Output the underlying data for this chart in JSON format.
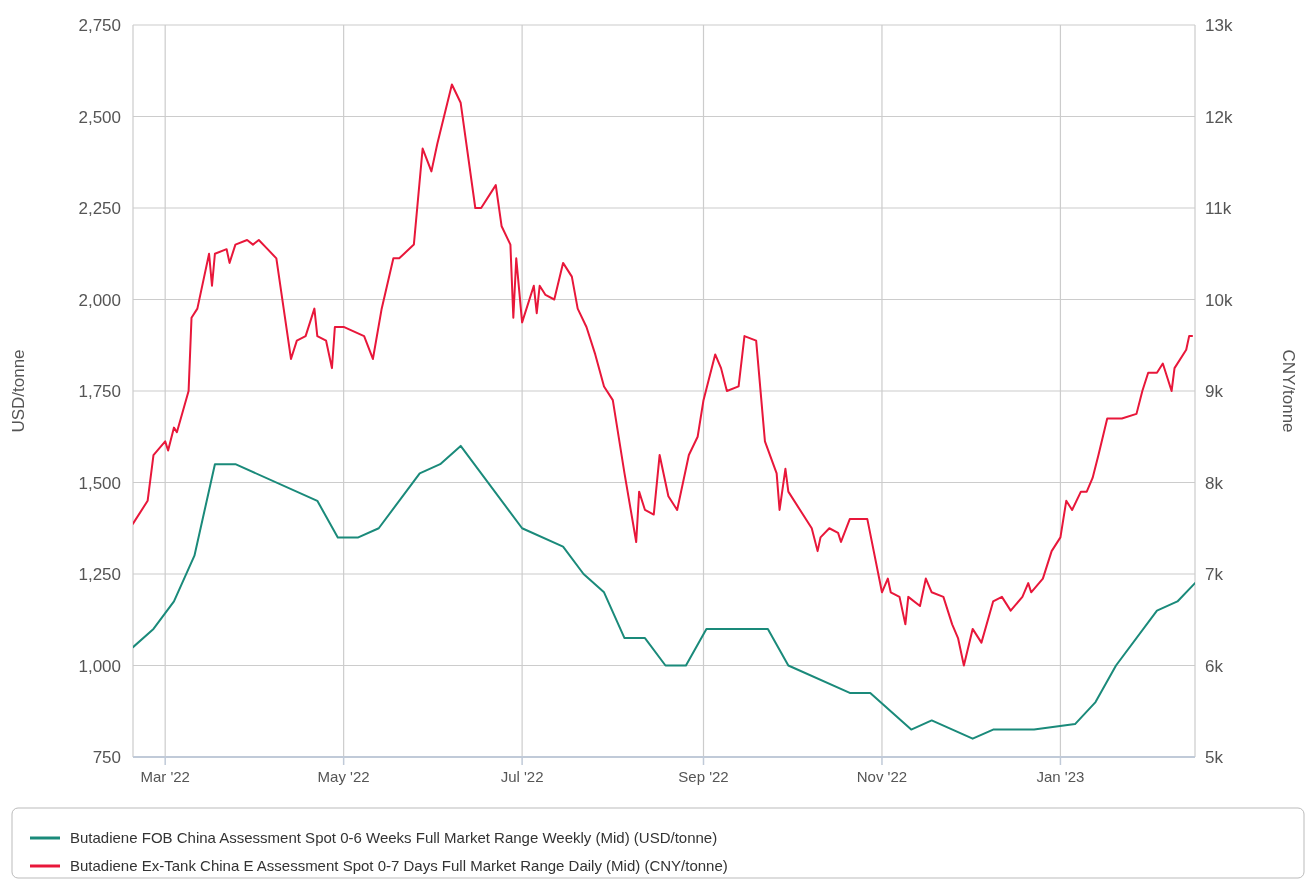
{
  "chart_data": {
    "type": "line",
    "ylabel": "USD/tonne",
    "y2label": "CNY/tonne",
    "xlim": [
      "2022-02-18",
      "2023-02-16"
    ],
    "xticks": [
      {
        "value": "2022-03-01",
        "label": "Mar '22"
      },
      {
        "value": "2022-05-01",
        "label": "May '22"
      },
      {
        "value": "2022-07-01",
        "label": "Jul '22"
      },
      {
        "value": "2022-09-01",
        "label": "Sep '22"
      },
      {
        "value": "2022-11-01",
        "label": "Nov '22"
      },
      {
        "value": "2023-01-01",
        "label": "Jan '23"
      }
    ],
    "ylim": [
      750,
      2750
    ],
    "yticks": [
      {
        "value": 750,
        "label": "750"
      },
      {
        "value": 1000,
        "label": "1,000"
      },
      {
        "value": 1250,
        "label": "1,250"
      },
      {
        "value": 1500,
        "label": "1,500"
      },
      {
        "value": 1750,
        "label": "1,750"
      },
      {
        "value": 2000,
        "label": "2,000"
      },
      {
        "value": 2250,
        "label": "2,250"
      },
      {
        "value": 2500,
        "label": "2,500"
      },
      {
        "value": 2750,
        "label": "2,750"
      }
    ],
    "y2lim": [
      5000,
      13000
    ],
    "y2ticks": [
      {
        "value": 5000,
        "label": "5k"
      },
      {
        "value": 6000,
        "label": "6k"
      },
      {
        "value": 7000,
        "label": "7k"
      },
      {
        "value": 8000,
        "label": "8k"
      },
      {
        "value": 9000,
        "label": "9k"
      },
      {
        "value": 10000,
        "label": "10k"
      },
      {
        "value": 11000,
        "label": "11k"
      },
      {
        "value": 12000,
        "label": "12k"
      },
      {
        "value": 13000,
        "label": "13k"
      }
    ],
    "grid": true,
    "legend": "bottom",
    "marker": "none",
    "line_style": "solid",
    "series": [
      {
        "name": "Butadiene FOB China Assessment Spot 0-6 Weeks Full Market Range Weekly (Mid) (USD/tonne)",
        "color": "#1a8a7a",
        "x": [
          "2022-02-18",
          "2022-02-25",
          "2022-03-04",
          "2022-03-11",
          "2022-03-18",
          "2022-03-25",
          "2022-04-22",
          "2022-04-29",
          "2022-05-06",
          "2022-05-13",
          "2022-05-27",
          "2022-06-03",
          "2022-06-10",
          "2022-07-01",
          "2022-07-15",
          "2022-07-22",
          "2022-07-29",
          "2022-08-05",
          "2022-08-12",
          "2022-08-19",
          "2022-08-26",
          "2022-09-02",
          "2022-09-23",
          "2022-09-30",
          "2022-10-21",
          "2022-10-28",
          "2022-11-11",
          "2022-11-18",
          "2022-12-02",
          "2022-12-09",
          "2022-12-23",
          "2023-01-06",
          "2023-01-13",
          "2023-01-20",
          "2023-02-03",
          "2023-02-10",
          "2023-02-16"
        ],
        "values": [
          1050,
          1100,
          1175,
          1300,
          1550,
          1550,
          1450,
          1350,
          1350,
          1375,
          1525,
          1550,
          1600,
          1375,
          1325,
          1250,
          1200,
          1075,
          1075,
          1000,
          1000,
          1100,
          1100,
          1000,
          925,
          925,
          825,
          850,
          800,
          825,
          825,
          840,
          900,
          1000,
          1150,
          1175,
          1225
        ]
      },
      {
        "name": "Butadiene Ex-Tank China E Assessment Spot 0-7 Days Full Market Range Daily (Mid) (CNY/tonne)",
        "color": "#e8173a",
        "axis": "y2",
        "x": [
          "2022-02-18",
          "2022-02-23",
          "2022-02-25",
          "2022-03-01",
          "2022-03-02",
          "2022-03-04",
          "2022-03-05",
          "2022-03-09",
          "2022-03-10",
          "2022-03-12",
          "2022-03-16",
          "2022-03-17",
          "2022-03-18",
          "2022-03-22",
          "2022-03-23",
          "2022-03-25",
          "2022-03-29",
          "2022-03-31",
          "2022-04-02",
          "2022-04-05",
          "2022-04-08",
          "2022-04-13",
          "2022-04-15",
          "2022-04-18",
          "2022-04-21",
          "2022-04-22",
          "2022-04-25",
          "2022-04-27",
          "2022-04-28",
          "2022-05-01",
          "2022-05-08",
          "2022-05-11",
          "2022-05-14",
          "2022-05-18",
          "2022-05-20",
          "2022-05-25",
          "2022-05-28",
          "2022-05-31",
          "2022-06-02",
          "2022-06-07",
          "2022-06-10",
          "2022-06-15",
          "2022-06-17",
          "2022-06-22",
          "2022-06-24",
          "2022-06-27",
          "2022-06-28",
          "2022-06-29",
          "2022-07-01",
          "2022-07-05",
          "2022-07-06",
          "2022-07-07",
          "2022-07-09",
          "2022-07-12",
          "2022-07-15",
          "2022-07-18",
          "2022-07-20",
          "2022-07-23",
          "2022-07-26",
          "2022-07-29",
          "2022-08-01",
          "2022-08-05",
          "2022-08-09",
          "2022-08-10",
          "2022-08-12",
          "2022-08-15",
          "2022-08-17",
          "2022-08-20",
          "2022-08-23",
          "2022-08-27",
          "2022-08-30",
          "2022-09-01",
          "2022-09-05",
          "2022-09-07",
          "2022-09-09",
          "2022-09-13",
          "2022-09-15",
          "2022-09-19",
          "2022-09-22",
          "2022-09-26",
          "2022-09-27",
          "2022-09-29",
          "2022-09-30",
          "2022-10-08",
          "2022-10-10",
          "2022-10-11",
          "2022-10-14",
          "2022-10-17",
          "2022-10-18",
          "2022-10-21",
          "2022-10-27",
          "2022-11-01",
          "2022-11-03",
          "2022-11-04",
          "2022-11-07",
          "2022-11-09",
          "2022-11-10",
          "2022-11-14",
          "2022-11-16",
          "2022-11-18",
          "2022-11-22",
          "2022-11-25",
          "2022-11-27",
          "2022-11-29",
          "2022-12-02",
          "2022-12-05",
          "2022-12-09",
          "2022-12-12",
          "2022-12-15",
          "2022-12-19",
          "2022-12-21",
          "2022-12-22",
          "2022-12-26",
          "2022-12-29",
          "2023-01-01",
          "2023-01-03",
          "2023-01-05",
          "2023-01-08",
          "2023-01-10",
          "2023-01-12",
          "2023-01-14",
          "2023-01-17",
          "2023-01-22",
          "2023-01-27",
          "2023-01-29",
          "2023-01-31",
          "2023-02-03",
          "2023-02-05",
          "2023-02-08",
          "2023-02-09",
          "2023-02-13",
          "2023-02-14",
          "2023-02-15"
        ],
        "values": [
          7550,
          7800,
          8300,
          8450,
          8350,
          8600,
          8550,
          9000,
          9800,
          9900,
          10500,
          10150,
          10500,
          10550,
          10400,
          10600,
          10650,
          10600,
          10650,
          10550,
          10450,
          9350,
          9550,
          9600,
          9900,
          9600,
          9550,
          9250,
          9700,
          9700,
          9600,
          9350,
          9900,
          10450,
          10450,
          10600,
          11650,
          11400,
          11700,
          12350,
          12150,
          11000,
          11000,
          11250,
          10800,
          10600,
          9800,
          10450,
          9750,
          10150,
          9850,
          10150,
          10050,
          10000,
          10400,
          10250,
          9900,
          9700,
          9400,
          9050,
          8900,
          8100,
          7350,
          7900,
          7700,
          7650,
          8300,
          7850,
          7700,
          8300,
          8500,
          8900,
          9400,
          9250,
          9000,
          9050,
          9600,
          9550,
          8450,
          8100,
          7700,
          8150,
          7900,
          7500,
          7250,
          7400,
          7500,
          7450,
          7350,
          7600,
          7600,
          6800,
          6950,
          6800,
          6750,
          6450,
          6750,
          6650,
          6950,
          6800,
          6750,
          6450,
          6300,
          6000,
          6400,
          6250,
          6700,
          6750,
          6600,
          6750,
          6900,
          6800,
          6950,
          7250,
          7400,
          7800,
          7700,
          7900,
          7900,
          8050,
          8300,
          8700,
          8700,
          8750,
          9000,
          9200,
          9200,
          9300,
          9000,
          9250,
          9450,
          9600,
          9600
        ]
      }
    ]
  }
}
